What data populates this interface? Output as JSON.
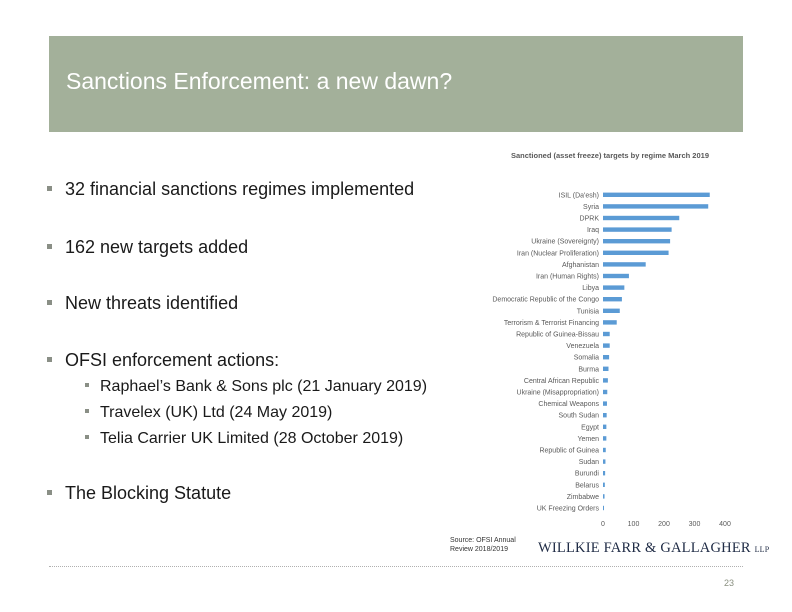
{
  "slide": {
    "title": "Sanctions Enforcement: a new dawn?",
    "page_number": "23",
    "source_line1": "Source: OFSI Annual",
    "source_line2": "Review 2018/2019",
    "logo_text": "WILLKIE FARR & GALLAGHER",
    "logo_suffix": "LLP"
  },
  "bullets": [
    "32 financial sanctions regimes implemented",
    "162 new targets added",
    "New threats identified",
    "OFSI enforcement actions:",
    "The Blocking Statute"
  ],
  "sub_bullets": [
    "Raphael’s Bank & Sons plc (21 January 2019)",
    "Travelex (UK) Ltd (24 May 2019)",
    "Telia Carrier UK Limited (28 October 2019)"
  ],
  "colors": {
    "band": "#a3b09a",
    "bar": "#5b9bd5",
    "title_text": "#ffffff"
  },
  "chart_data": {
    "type": "bar",
    "orientation": "horizontal",
    "title": "Sanctioned (asset freeze) targets by regime March 2019",
    "categories": [
      "ISIL (Da'esh)",
      "Syria",
      "DPRK",
      "Iraq",
      "Ukraine (Sovereignty)",
      "Iran (Nuclear Proliferation)",
      "Afghanistan",
      "Iran (Human Rights)",
      "Libya",
      "Democratic Republic of the Congo",
      "Tunisia",
      "Terrorism & Terrorist Financing",
      "Republic of Guinea-Bissau",
      "Venezuela",
      "Somalia",
      "Burma",
      "Central African Republic",
      "Ukraine (Misappropriation)",
      "Chemical Weapons",
      "South Sudan",
      "Egypt",
      "Yemen",
      "Republic of Guinea",
      "Sudan",
      "Burundi",
      "Belarus",
      "Zimbabwe",
      "UK Freezing Orders"
    ],
    "values": [
      350,
      345,
      250,
      225,
      220,
      215,
      140,
      85,
      70,
      62,
      55,
      45,
      22,
      22,
      20,
      18,
      16,
      14,
      13,
      12,
      11,
      11,
      9,
      8,
      7,
      6,
      5,
      2
    ],
    "xticks": [
      0,
      100,
      200,
      300,
      400
    ],
    "xlim": [
      0,
      400
    ]
  }
}
